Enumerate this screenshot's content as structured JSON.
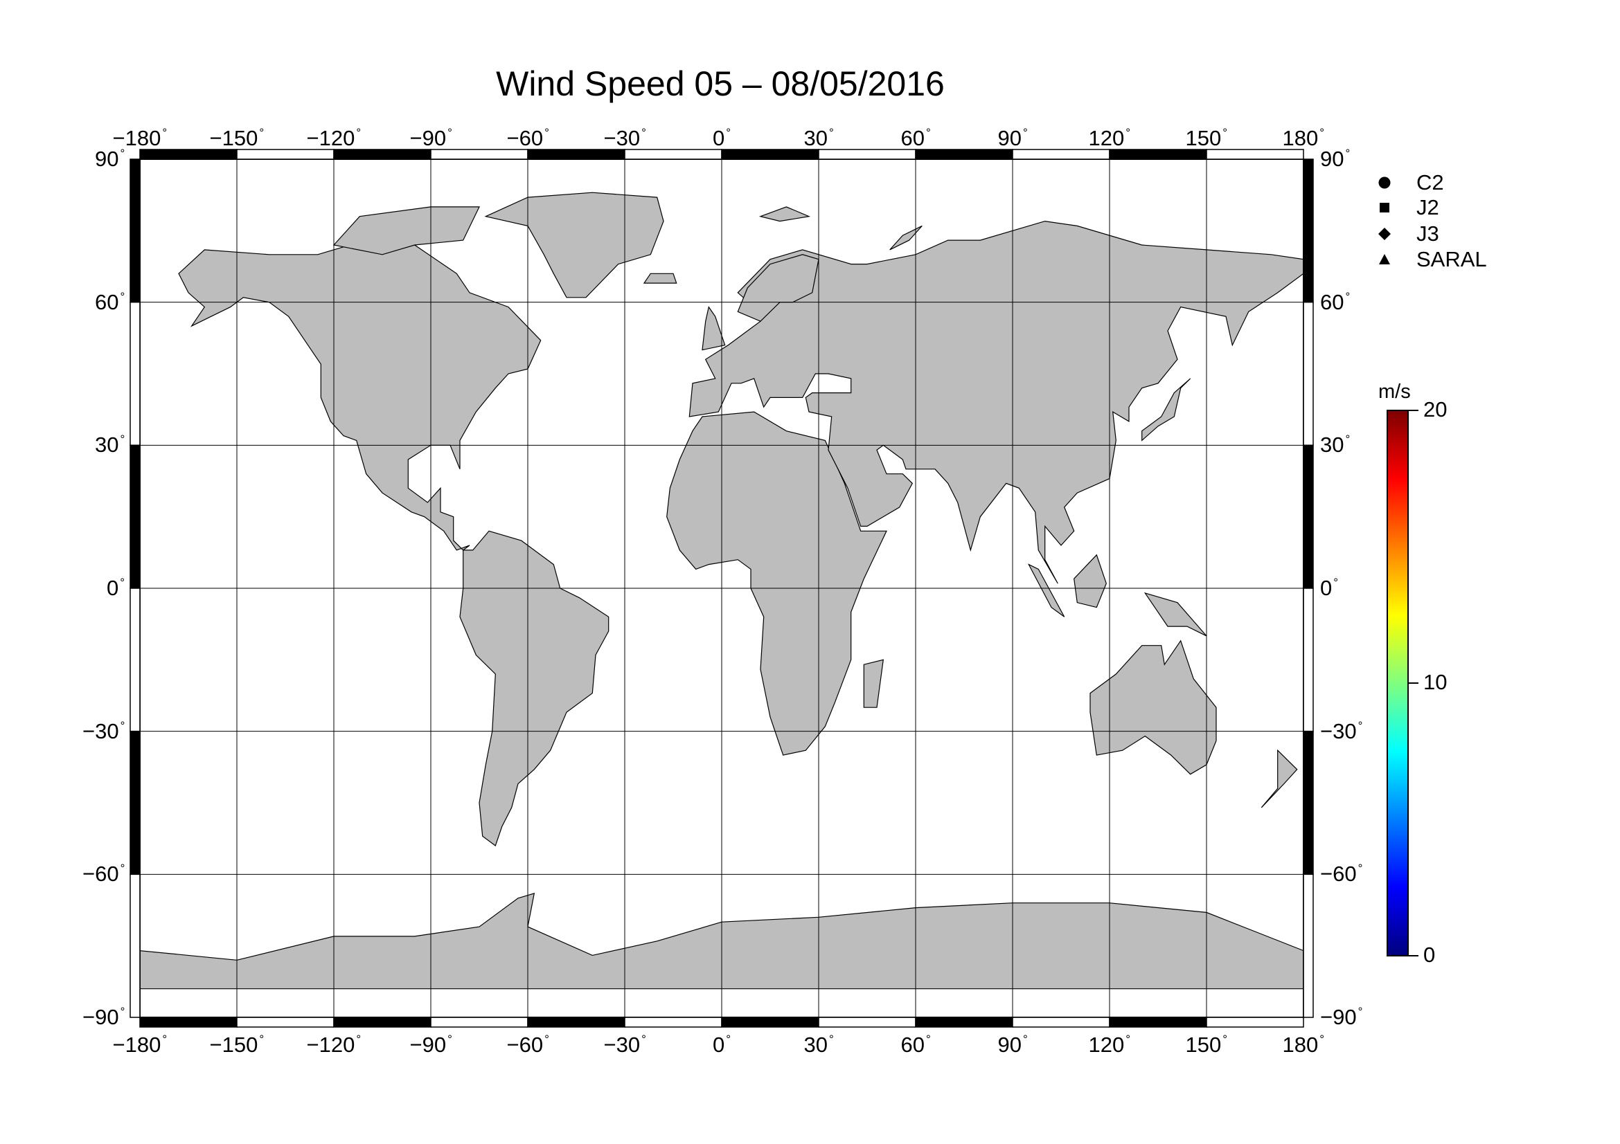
{
  "title": "Wind Speed 05 – 08/05/2016",
  "axes": {
    "lon_ticks": [
      "-180",
      "-150",
      "-120",
      "-90",
      "-60",
      "-30",
      "0",
      "30",
      "60",
      "90",
      "120",
      "150",
      "180"
    ],
    "lat_ticks": [
      "90",
      "60",
      "30",
      "0",
      "-30",
      "-60",
      "-90"
    ],
    "degree_symbol": "°"
  },
  "legend": {
    "items": [
      {
        "label": "C2",
        "marker": "circle"
      },
      {
        "label": "J2",
        "marker": "square"
      },
      {
        "label": "J3",
        "marker": "diamond"
      },
      {
        "label": "SARAL",
        "marker": "triangle"
      }
    ]
  },
  "colorbar": {
    "unit": "m/s",
    "min": 0,
    "max": 20,
    "tick_labels": [
      "20",
      "10",
      "0"
    ],
    "colormap": "jet",
    "colors": [
      "#00007f",
      "#0000ff",
      "#007fff",
      "#00ffff",
      "#7fff7f",
      "#ffff00",
      "#ff7f00",
      "#ff0000",
      "#7f0000"
    ]
  },
  "colors": {
    "land": "#bdbdbd",
    "ocean": "#ffffff",
    "frame": "#000000"
  }
}
